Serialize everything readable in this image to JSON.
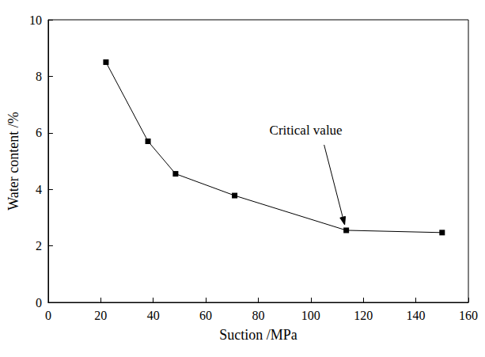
{
  "chart_data": {
    "type": "line",
    "x_label": "Suction /MPa",
    "y_label": "Water content /%",
    "x": [
      22,
      38,
      48.5,
      71,
      113.5,
      150
    ],
    "values": [
      8.5,
      5.7,
      4.55,
      3.78,
      2.55,
      2.47
    ],
    "color": "#000000",
    "marker": "square",
    "xlim": [
      0,
      160
    ],
    "xticks": [
      0,
      20,
      40,
      60,
      80,
      100,
      120,
      140,
      160
    ],
    "ylim": [
      0,
      10
    ],
    "yticks": [
      0,
      2,
      4,
      6,
      8,
      10
    ],
    "grid": false,
    "annotations": [
      {
        "text": "Critical value",
        "x": 113.5,
        "y": 2.55
      }
    ]
  }
}
